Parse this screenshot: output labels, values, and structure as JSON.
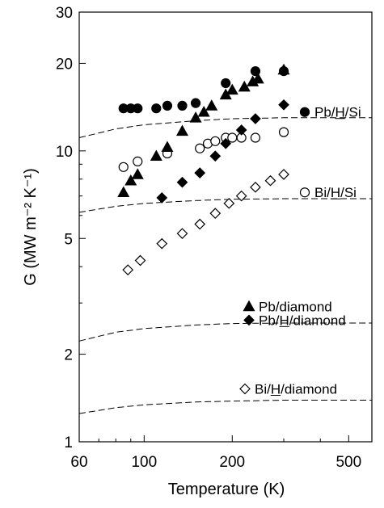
{
  "chart_data": {
    "type": "scatter",
    "title": "",
    "xlabel": "Temperature (K)",
    "ylabel": "G (MW m⁻² K⁻¹)",
    "x_scale": "log",
    "y_scale": "log",
    "xlim": [
      60,
      600
    ],
    "ylim": [
      1,
      30
    ],
    "x_ticks": [
      60,
      100,
      200,
      500
    ],
    "y_ticks": [
      1,
      2,
      5,
      10,
      20,
      30
    ],
    "grid": false,
    "series": [
      {
        "name": "Pb/H/Si",
        "marker": "filled-circle",
        "color": "#000000",
        "x": [
          85,
          90,
          95,
          110,
          120,
          135,
          150,
          190,
          240,
          300
        ],
        "y": [
          14.0,
          14.0,
          14.0,
          14.0,
          14.3,
          14.3,
          14.6,
          17.1,
          18.8,
          18.8
        ]
      },
      {
        "name": "Bi/H/Si",
        "marker": "open-circle",
        "color": "#000000",
        "x": [
          85,
          95,
          120,
          155,
          165,
          175,
          190,
          200,
          215,
          240,
          300
        ],
        "y": [
          8.8,
          9.2,
          9.8,
          10.2,
          10.6,
          10.8,
          11.1,
          11.1,
          11.1,
          11.1,
          11.6
        ]
      },
      {
        "name": "Pb/diamond",
        "marker": "filled-triangle",
        "color": "#000000",
        "x": [
          85,
          90,
          95,
          110,
          120,
          135,
          150,
          160,
          170,
          190,
          200,
          220,
          235,
          245,
          300
        ],
        "y": [
          7.2,
          7.9,
          8.3,
          9.6,
          10.3,
          11.7,
          13.0,
          13.6,
          14.3,
          15.6,
          16.2,
          16.6,
          17.3,
          17.7,
          19.0
        ]
      },
      {
        "name": "Pb/H/diamond",
        "marker": "filled-diamond",
        "color": "#000000",
        "x": [
          115,
          135,
          155,
          175,
          190,
          215,
          240,
          300
        ],
        "y": [
          6.9,
          7.8,
          8.4,
          9.6,
          10.6,
          11.8,
          12.9,
          14.4
        ]
      },
      {
        "name": "Bi/H/diamond",
        "marker": "open-diamond",
        "color": "#000000",
        "x": [
          88,
          97,
          115,
          135,
          155,
          175,
          195,
          215,
          240,
          270,
          300
        ],
        "y": [
          3.9,
          4.2,
          4.8,
          5.2,
          5.6,
          6.1,
          6.6,
          7.0,
          7.5,
          7.9,
          8.3
        ]
      }
    ],
    "reference_curves": [
      {
        "style": "dashed",
        "x": [
          60,
          80,
          100,
          150,
          200,
          300,
          450,
          600
        ],
        "y": [
          11.1,
          11.9,
          12.3,
          12.7,
          12.9,
          13.0,
          13.0,
          13.0
        ]
      },
      {
        "style": "dashed",
        "x": [
          60,
          80,
          100,
          150,
          200,
          300,
          450,
          600
        ],
        "y": [
          6.15,
          6.45,
          6.6,
          6.75,
          6.82,
          6.85,
          6.85,
          6.85
        ]
      },
      {
        "style": "dashed",
        "x": [
          60,
          80,
          100,
          150,
          200,
          300,
          450,
          600
        ],
        "y": [
          2.22,
          2.38,
          2.45,
          2.52,
          2.55,
          2.56,
          2.56,
          2.56
        ]
      },
      {
        "style": "dashed",
        "x": [
          60,
          80,
          100,
          150,
          200,
          300,
          450,
          600
        ],
        "y": [
          1.25,
          1.31,
          1.34,
          1.37,
          1.38,
          1.39,
          1.39,
          1.39
        ]
      }
    ],
    "legend": [
      {
        "label": "Pb/H/Si",
        "marker": "filled-circle",
        "underline": "H"
      },
      {
        "label": "Bi/H/Si",
        "marker": "open-circle",
        "underline": "H"
      },
      {
        "label": "Pb/diamond",
        "marker": "filled-triangle",
        "underline": ""
      },
      {
        "label": "Pb/H/diamond",
        "marker": "filled-diamond",
        "underline": "H"
      },
      {
        "label": "Bi/H/diamond",
        "marker": "open-diamond",
        "underline": "H"
      }
    ],
    "legend_placement": "inline-right"
  }
}
